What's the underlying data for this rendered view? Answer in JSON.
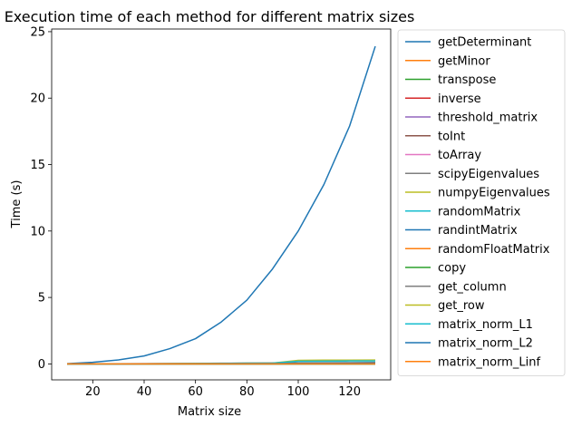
{
  "chart_data": {
    "type": "line",
    "title": "Execution time of each method for different matrix sizes",
    "xlabel": "Matrix size",
    "ylabel": "Time (s)",
    "xlim": [
      4,
      136
    ],
    "ylim": [
      -1.2,
      25.2
    ],
    "xticks": [
      20,
      40,
      60,
      80,
      100,
      120
    ],
    "yticks": [
      0,
      5,
      10,
      15,
      20,
      25
    ],
    "grid": false,
    "legend_position": "outside-right",
    "x": [
      10,
      20,
      30,
      40,
      50,
      60,
      70,
      80,
      90,
      100,
      110,
      120,
      130
    ],
    "series": [
      {
        "name": "getDeterminant",
        "color": "#1f77b4",
        "values": [
          0.02,
          0.12,
          0.3,
          0.6,
          1.15,
          1.9,
          3.15,
          4.8,
          7.15,
          10.0,
          13.5,
          17.9,
          23.9
        ]
      },
      {
        "name": "getMinor",
        "color": "#ff7f0e",
        "values": [
          0,
          0,
          0,
          0,
          0,
          0,
          0,
          0,
          0,
          0,
          0,
          0,
          0
        ]
      },
      {
        "name": "transpose",
        "color": "#2ca02c",
        "values": [
          0,
          0,
          0,
          0,
          0,
          0,
          0,
          0,
          0,
          0,
          0,
          0,
          0
        ]
      },
      {
        "name": "inverse",
        "color": "#d62728",
        "values": [
          0,
          0,
          0,
          0,
          0,
          0,
          0,
          0,
          0,
          0,
          0,
          0,
          0
        ]
      },
      {
        "name": "threshold_matrix",
        "color": "#9467bd",
        "values": [
          0,
          0,
          0,
          0,
          0,
          0,
          0,
          0,
          0,
          0,
          0,
          0,
          0
        ]
      },
      {
        "name": "toInt",
        "color": "#8c564b",
        "values": [
          0,
          0,
          0,
          0,
          0,
          0,
          0,
          0,
          0,
          0,
          0,
          0,
          0
        ]
      },
      {
        "name": "toArray",
        "color": "#e377c2",
        "values": [
          0,
          0,
          0,
          0,
          0,
          0,
          0,
          0,
          0,
          0,
          0,
          0,
          0
        ]
      },
      {
        "name": "scipyEigenvalues",
        "color": "#7f7f7f",
        "values": [
          0.0,
          0.01,
          0.01,
          0.02,
          0.03,
          0.04,
          0.05,
          0.06,
          0.07,
          0.08,
          0.09,
          0.1,
          0.11
        ]
      },
      {
        "name": "numpyEigenvalues",
        "color": "#bcbd22",
        "values": [
          0.0,
          0.0,
          0.01,
          0.01,
          0.02,
          0.03,
          0.04,
          0.05,
          0.06,
          0.27,
          0.28,
          0.28,
          0.29
        ]
      },
      {
        "name": "randomMatrix",
        "color": "#17becf",
        "values": [
          0.0,
          0.0,
          0.01,
          0.01,
          0.02,
          0.03,
          0.04,
          0.05,
          0.06,
          0.2,
          0.21,
          0.22,
          0.22
        ]
      },
      {
        "name": "randintMatrix",
        "color": "#1f77b4",
        "values": [
          0,
          0,
          0,
          0,
          0,
          0,
          0,
          0,
          0,
          0,
          0,
          0,
          0
        ]
      },
      {
        "name": "randomFloatMatrix",
        "color": "#ff7f0e",
        "values": [
          0,
          0,
          0,
          0,
          0,
          0,
          0,
          0,
          0,
          0,
          0,
          0,
          0
        ]
      },
      {
        "name": "copy",
        "color": "#2ca02c",
        "values": [
          0,
          0,
          0,
          0,
          0,
          0,
          0,
          0,
          0,
          0,
          0,
          0,
          0
        ]
      },
      {
        "name": "get_column",
        "color": "#7f7f7f",
        "values": [
          0,
          0,
          0,
          0,
          0,
          0,
          0,
          0,
          0,
          0,
          0,
          0,
          0
        ]
      },
      {
        "name": "get_row",
        "color": "#bcbd22",
        "values": [
          0,
          0,
          0,
          0,
          0,
          0,
          0,
          0,
          0,
          0,
          0,
          0,
          0
        ]
      },
      {
        "name": "matrix_norm_L1",
        "color": "#17becf",
        "values": [
          0,
          0,
          0,
          0,
          0,
          0,
          0,
          0,
          0,
          0,
          0,
          0,
          0
        ]
      },
      {
        "name": "matrix_norm_L2",
        "color": "#1f77b4",
        "values": [
          0.0,
          0.0,
          0.0,
          0.01,
          0.01,
          0.01,
          0.02,
          0.02,
          0.02,
          0.03,
          0.03,
          0.04,
          0.04
        ]
      },
      {
        "name": "matrix_norm_Linf",
        "color": "#ff7f0e",
        "values": [
          0,
          0,
          0,
          0,
          0,
          0,
          0,
          0,
          0,
          0,
          0,
          0,
          0
        ]
      }
    ]
  }
}
